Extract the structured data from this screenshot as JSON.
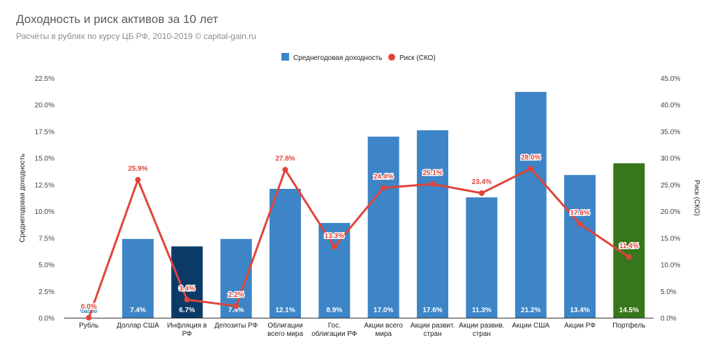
{
  "chart_data": {
    "type": "bar+line",
    "title": "Доходность и риск активов за 10 лет",
    "subtitle": "Расчёты в рублях по курсу ЦБ РФ, 2010-2019 © capital-gain.ru",
    "ylabel_left": "Среднегодовая доходность",
    "ylabel_right": "Риск (СКО)",
    "ylim_left": [
      0,
      22.5
    ],
    "ylim_right": [
      0,
      45
    ],
    "yticks_left": [
      "0.0%",
      "2.5%",
      "5.0%",
      "7.5%",
      "10.0%",
      "12.5%",
      "15.0%",
      "17.5%",
      "20.0%",
      "22.5%"
    ],
    "yticks_right": [
      "0.0%",
      "5.0%",
      "10.0%",
      "15.0%",
      "20.0%",
      "25.0%",
      "30.0%",
      "35.0%",
      "40.0%",
      "45.0%"
    ],
    "legend_position": "top-center",
    "grid": false,
    "categories": [
      [
        "Рубль"
      ],
      [
        "Доллар США"
      ],
      [
        "Инфляция в",
        "РФ"
      ],
      [
        "Депозиты РФ"
      ],
      [
        "Облигации",
        "всего мира"
      ],
      [
        "Гос.",
        "облигации РФ"
      ],
      [
        "Акции всего",
        "мира"
      ],
      [
        "Акции развит.",
        "стран"
      ],
      [
        "Акции развив.",
        "стран"
      ],
      [
        "Акции США"
      ],
      [
        "Акции РФ"
      ],
      [
        "Портфель"
      ]
    ],
    "series": [
      {
        "name": "Среднегодовая доходность",
        "kind": "bar",
        "axis": "left",
        "color": "#3d85c6",
        "values": [
          0.0,
          7.4,
          6.7,
          7.4,
          12.1,
          8.9,
          17.0,
          17.6,
          11.3,
          21.2,
          13.4,
          14.5
        ],
        "labels": [
          "0.0%",
          "7.4%",
          "6.7%",
          "7.4%",
          "12.1%",
          "8.9%",
          "17.0%",
          "17.6%",
          "11.3%",
          "21.2%",
          "13.4%",
          "14.5%"
        ],
        "bar_colors": [
          "#3d85c6",
          "#3d85c6",
          "#0b3a66",
          "#3d85c6",
          "#3d85c6",
          "#3d85c6",
          "#3d85c6",
          "#3d85c6",
          "#3d85c6",
          "#3d85c6",
          "#3d85c6",
          "#38761d"
        ]
      },
      {
        "name": "Риск (СКО)",
        "kind": "line",
        "axis": "right",
        "color": "#e0443a",
        "values": [
          0.0,
          25.9,
          3.4,
          2.2,
          27.8,
          13.3,
          24.4,
          25.1,
          23.4,
          28.0,
          17.6,
          11.4
        ],
        "labels": [
          "0.0%",
          "25.9%",
          "3.4%",
          "2.2%",
          "27.8%",
          "13.3%",
          "24.4%",
          "25.1%",
          "23.4%",
          "28.0%",
          "17.6%",
          "11.4%"
        ]
      }
    ]
  }
}
